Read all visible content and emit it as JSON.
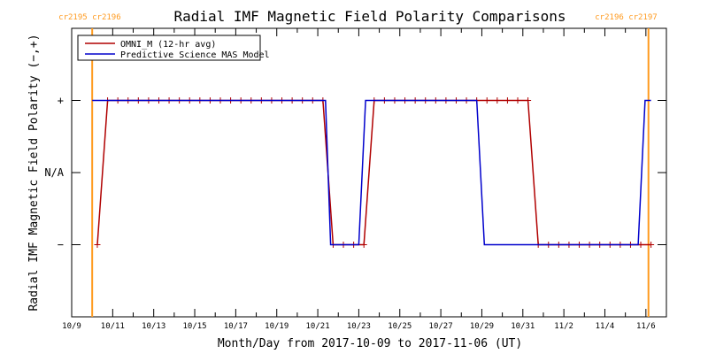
{
  "chart_data": {
    "type": "line",
    "title": "Radial IMF Magnetic Field Polarity Comparisons",
    "xlabel": "Month/Day from 2017-10-09 to 2017-11-06 (UT)",
    "ylabel": "Radial IMF Magnetic Field Polarity (−,+)",
    "x_tick_labels": [
      "10/9",
      "10/11",
      "10/13",
      "10/15",
      "10/17",
      "10/19",
      "10/21",
      "10/23",
      "10/25",
      "10/27",
      "10/29",
      "10/31",
      "11/2",
      "11/4",
      "11/6"
    ],
    "y_tick_labels": [
      "+",
      "N/A",
      "−"
    ],
    "y_levels": [
      1,
      0,
      -1
    ],
    "ylim": [
      -2,
      2
    ],
    "xlim": [
      "2017-10-09",
      "2017-11-07"
    ],
    "legend_position": "top-left",
    "series": [
      {
        "name": "OMNI_M (12-hr avg)",
        "color": "#b00000",
        "markers": true,
        "points": [
          {
            "x": "2017-10-10T06:00",
            "y": -1
          },
          {
            "x": "2017-10-10T18:00",
            "y": 1
          },
          {
            "x": "2017-10-11T06:00",
            "y": 1
          },
          {
            "x": "2017-10-11T18:00",
            "y": 1
          },
          {
            "x": "2017-10-12T06:00",
            "y": 1
          },
          {
            "x": "2017-10-12T18:00",
            "y": 1
          },
          {
            "x": "2017-10-13T06:00",
            "y": 1
          },
          {
            "x": "2017-10-13T18:00",
            "y": 1
          },
          {
            "x": "2017-10-14T06:00",
            "y": 1
          },
          {
            "x": "2017-10-14T18:00",
            "y": 1
          },
          {
            "x": "2017-10-15T06:00",
            "y": 1
          },
          {
            "x": "2017-10-15T18:00",
            "y": 1
          },
          {
            "x": "2017-10-16T06:00",
            "y": 1
          },
          {
            "x": "2017-10-16T18:00",
            "y": 1
          },
          {
            "x": "2017-10-17T06:00",
            "y": 1
          },
          {
            "x": "2017-10-17T18:00",
            "y": 1
          },
          {
            "x": "2017-10-18T06:00",
            "y": 1
          },
          {
            "x": "2017-10-18T18:00",
            "y": 1
          },
          {
            "x": "2017-10-19T06:00",
            "y": 1
          },
          {
            "x": "2017-10-19T18:00",
            "y": 1
          },
          {
            "x": "2017-10-20T06:00",
            "y": 1
          },
          {
            "x": "2017-10-20T18:00",
            "y": 1
          },
          {
            "x": "2017-10-21T06:00",
            "y": 1
          },
          {
            "x": "2017-10-21T18:00",
            "y": -1
          },
          {
            "x": "2017-10-22T06:00",
            "y": -1
          },
          {
            "x": "2017-10-22T18:00",
            "y": -1
          },
          {
            "x": "2017-10-23T06:00",
            "y": -1
          },
          {
            "x": "2017-10-23T18:00",
            "y": 1
          },
          {
            "x": "2017-10-24T06:00",
            "y": 1
          },
          {
            "x": "2017-10-24T18:00",
            "y": 1
          },
          {
            "x": "2017-10-25T06:00",
            "y": 1
          },
          {
            "x": "2017-10-25T18:00",
            "y": 1
          },
          {
            "x": "2017-10-26T06:00",
            "y": 1
          },
          {
            "x": "2017-10-26T18:00",
            "y": 1
          },
          {
            "x": "2017-10-27T06:00",
            "y": 1
          },
          {
            "x": "2017-10-27T18:00",
            "y": 1
          },
          {
            "x": "2017-10-28T06:00",
            "y": 1
          },
          {
            "x": "2017-10-28T18:00",
            "y": 1
          },
          {
            "x": "2017-10-29T06:00",
            "y": 1
          },
          {
            "x": "2017-10-29T18:00",
            "y": 1
          },
          {
            "x": "2017-10-30T06:00",
            "y": 1
          },
          {
            "x": "2017-10-30T18:00",
            "y": 1
          },
          {
            "x": "2017-10-31T06:00",
            "y": 1
          },
          {
            "x": "2017-10-31T18:00",
            "y": -1
          },
          {
            "x": "2017-11-01T06:00",
            "y": -1
          },
          {
            "x": "2017-11-01T18:00",
            "y": -1
          },
          {
            "x": "2017-11-02T06:00",
            "y": -1
          },
          {
            "x": "2017-11-02T18:00",
            "y": -1
          },
          {
            "x": "2017-11-03T06:00",
            "y": -1
          },
          {
            "x": "2017-11-03T18:00",
            "y": -1
          },
          {
            "x": "2017-11-04T06:00",
            "y": -1
          },
          {
            "x": "2017-11-04T18:00",
            "y": -1
          },
          {
            "x": "2017-11-05T06:00",
            "y": -1
          },
          {
            "x": "2017-11-05T18:00",
            "y": -1
          },
          {
            "x": "2017-11-06T06:00",
            "y": -1
          }
        ]
      },
      {
        "name": "Predictive Science MAS Model",
        "color": "#0000cc",
        "markers": false,
        "points": [
          {
            "x": "2017-10-10T00:00",
            "y": 1
          },
          {
            "x": "2017-10-21T09:00",
            "y": 1
          },
          {
            "x": "2017-10-21T15:00",
            "y": -1
          },
          {
            "x": "2017-10-23T00:00",
            "y": -1
          },
          {
            "x": "2017-10-23T08:00",
            "y": 1
          },
          {
            "x": "2017-10-28T18:00",
            "y": 1
          },
          {
            "x": "2017-10-29T03:00",
            "y": -1
          },
          {
            "x": "2017-11-05T15:00",
            "y": -1
          },
          {
            "x": "2017-11-05T23:00",
            "y": 1
          },
          {
            "x": "2017-11-06T06:00",
            "y": 1
          }
        ]
      }
    ],
    "markers": [
      {
        "x": "2017-10-10T00:00",
        "labels": [
          "cr2195",
          "cr2196"
        ],
        "color": "#ff9a1e"
      },
      {
        "x": "2017-11-06T03:00",
        "labels": [
          "cr2196",
          "cr2197"
        ],
        "color": "#ff9a1e"
      }
    ]
  }
}
